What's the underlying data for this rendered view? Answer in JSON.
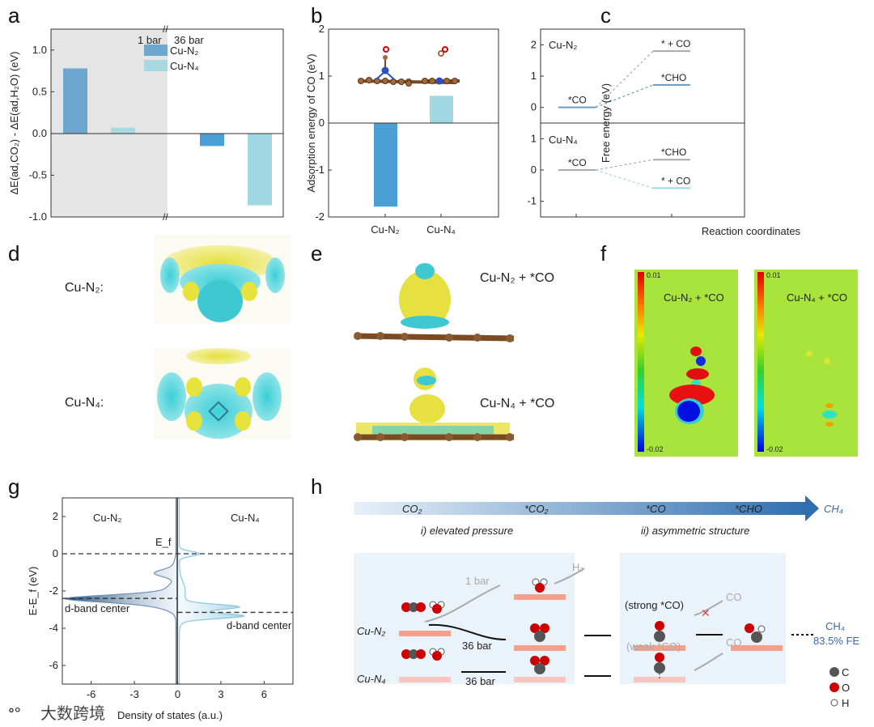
{
  "panels": {
    "a": "a",
    "b": "b",
    "c": "c",
    "d": "d",
    "e": "e",
    "f": "f",
    "g": "g",
    "h": "h"
  },
  "colors": {
    "cu_n2": "#6fa8cf",
    "cu_n2_dark": "#4a9fd6",
    "cu_n4": "#a8d8e0",
    "cu_n4_36": "#9fd8e3",
    "grey_region": "#e5e5e5",
    "orange": "#f4a08a",
    "arrow_blue": "#3a78b8"
  },
  "chart_data": [
    {
      "id": "a",
      "type": "bar",
      "ylabel": "ΔE(ad,CO₂) - ΔE(ad,H₂O) (eV)",
      "ylim": [
        -1.0,
        1.25
      ],
      "yticks": [
        "1.0",
        "0.5",
        "0.0",
        "-0.5",
        "-1.0"
      ],
      "ytick_values": [
        1.0,
        0.5,
        0.0,
        -0.5,
        -1.0
      ],
      "groups": [
        "1 bar",
        "36 bar"
      ],
      "legend": [
        "Cu-N₂",
        "Cu-N₄"
      ],
      "series": [
        {
          "name": "Cu-N₂",
          "values": [
            0.78,
            -0.15
          ]
        },
        {
          "name": "Cu-N₄",
          "values": [
            0.07,
            -0.86
          ]
        }
      ]
    },
    {
      "id": "b",
      "type": "bar",
      "ylabel": "Adsorption energy of CO (eV)",
      "ylim": [
        -2,
        2
      ],
      "yticks": [
        "2",
        "1",
        "0",
        "-1",
        "-2"
      ],
      "ytick_values": [
        2,
        1,
        0,
        -1,
        -2
      ],
      "categories": [
        "Cu-N₂",
        "Cu-N₄"
      ],
      "values": [
        -1.78,
        0.58
      ]
    },
    {
      "id": "c",
      "type": "line",
      "ylabel": "Free energy (eV)",
      "xlabel": "Reaction coordinates",
      "subplots": [
        {
          "name": "Cu-N₂",
          "ylim": [
            -0.5,
            2.5
          ],
          "yticks": [
            "2",
            "1",
            "0"
          ],
          "ytick_values": [
            2,
            1,
            0
          ],
          "levels": [
            {
              "label": "*CO",
              "step": 0,
              "value": 0
            },
            {
              "label": "* + CO",
              "step": 1,
              "value": 1.8
            },
            {
              "label": "*CHO",
              "step": 1,
              "value": 0.72
            }
          ]
        },
        {
          "name": "Cu-N₄",
          "ylim": [
            -1.5,
            1.5
          ],
          "yticks": [
            "1",
            "0",
            "-1"
          ],
          "ytick_values": [
            1,
            0,
            -1
          ],
          "levels": [
            {
              "label": "*CO",
              "step": 0,
              "value": 0
            },
            {
              "label": "*CHO",
              "step": 1,
              "value": 0.33
            },
            {
              "label": "* + CO",
              "step": 1,
              "value": -0.58
            }
          ]
        }
      ]
    },
    {
      "id": "g",
      "type": "area",
      "ylabel": "E-E_f (eV)",
      "xlabel": "Density of states (a.u.)",
      "xlim": [
        -8,
        8
      ],
      "ylim": [
        -7,
        3
      ],
      "xticks": [
        "-6",
        "-3",
        "0",
        "3",
        "6"
      ],
      "xtick_values": [
        -6,
        -3,
        0,
        3,
        6
      ],
      "yticks": [
        "2",
        "0",
        "-2",
        "-4",
        "-6"
      ],
      "ytick_values": [
        2,
        0,
        -2,
        -4,
        -6
      ],
      "fermi_label": "E_f",
      "fermi_level": 0,
      "series": [
        {
          "name": "Cu-N₂",
          "d_band_center": -2.4,
          "d_band_label": "d-band center",
          "peaks": [
            {
              "E": -2.4,
              "dos": -5.9,
              "w": 0.18
            },
            {
              "E": -2.6,
              "dos": -2.0,
              "w": 0.3
            },
            {
              "E": -1.05,
              "dos": -1.4,
              "w": 0.18
            },
            {
              "E": -1.9,
              "dos": -0.6,
              "w": 0.3
            },
            {
              "E": -0.7,
              "dos": -0.2,
              "w": 0.3
            }
          ]
        },
        {
          "name": "Cu-N₄",
          "d_band_center": -3.15,
          "d_band_label": "d-band center",
          "peaks": [
            {
              "E": -2.85,
              "dos": 3.3,
              "w": 0.13
            },
            {
              "E": -3.35,
              "dos": 3.7,
              "w": 0.13
            },
            {
              "E": -3.1,
              "dos": 1.0,
              "w": 0.35
            },
            {
              "E": 0.0,
              "dos": 1.4,
              "w": 0.13
            },
            {
              "E": -2.0,
              "dos": 0.4,
              "w": 0.5
            }
          ]
        }
      ]
    }
  ],
  "d": {
    "label_n2": "Cu-N₂:",
    "label_n4": "Cu-N₄:"
  },
  "e": {
    "label_n2": "Cu-N₂ + *CO",
    "label_n4": "Cu-N₄ + *CO"
  },
  "f": {
    "map1_title": "Cu-N₂ + *CO",
    "map2_title": "Cu-N₄ + *CO",
    "scale_max": "0.01",
    "scale_min": "-0.02"
  },
  "h": {
    "pathway": [
      "CO₂",
      "*CO₂",
      "*CO",
      "*CHO",
      "CH₄"
    ],
    "step1": "i) elevated pressure",
    "step2": "ii) asymmetric structure",
    "cu_n2": "Cu-N₂",
    "cu_n4": "Cu-N₄",
    "one_bar": "1 bar",
    "h2": "H₂",
    "bar36_a": "36 bar",
    "bar36_b": "36 bar",
    "strong": "(strong *CO)",
    "weak": "(weak *CO)",
    "co_a": "CO",
    "co_b": "CO",
    "ch4": "CH₄",
    "fe": "83.5% FE",
    "legend": [
      "C",
      "O",
      "H"
    ]
  },
  "watermark": "大数跨境"
}
